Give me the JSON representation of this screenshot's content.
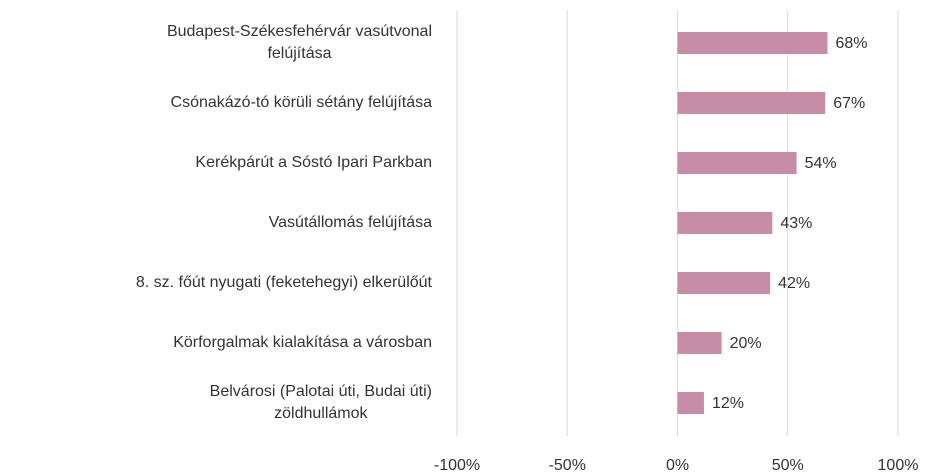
{
  "chart_data": {
    "type": "barh",
    "categories": [
      "Budapest-Székesfehérvár vasútvonal\nfelújítása",
      "Csónakázó-tó körüli sétány felújítása",
      "Kerékpárút a Sóstó Ipari Parkban",
      "Vasútállomás felújítása",
      "8. sz. főút nyugati (feketehegyi) elkerülőút",
      "Körforgalmak kialakítása a városban",
      "Belvárosi (Palotai úti, Budai úti)\nzöldhullámok"
    ],
    "values": [
      68,
      67,
      54,
      43,
      42,
      20,
      12
    ],
    "value_labels": [
      "68%",
      "67%",
      "54%",
      "43%",
      "42%",
      "20%",
      "12%"
    ],
    "color": "#c78ca6",
    "xlim": [
      -100,
      100
    ],
    "xticks": [
      {
        "value": -100,
        "label": "-100%"
      },
      {
        "value": -50,
        "label": "-50%"
      },
      {
        "value": 0,
        "label": "0%"
      },
      {
        "value": 50,
        "label": "50%"
      },
      {
        "value": 100,
        "label": "100%"
      }
    ],
    "grid": true
  }
}
